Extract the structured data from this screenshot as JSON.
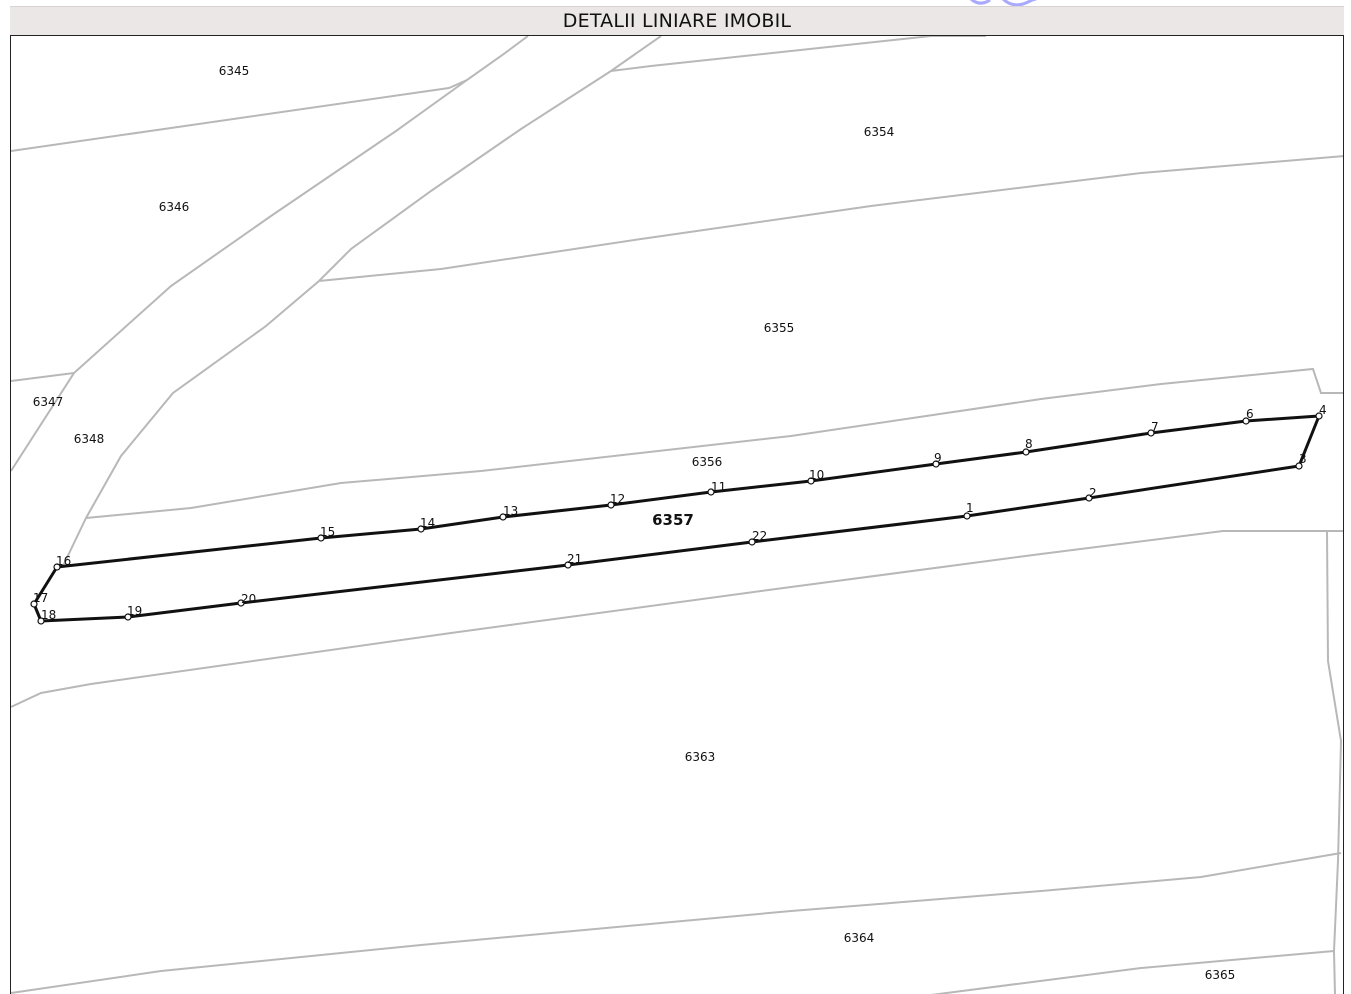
{
  "header": {
    "title": "DETALII LINIARE IMOBIL"
  },
  "colors": {
    "header_bg": "#ece7e7",
    "parcel_lines": "#b8b8b8",
    "boundary": "#111111",
    "watermark": "#a9a9ff"
  },
  "map": {
    "subject_parcel": "6357",
    "parcels": [
      "6345",
      "6346",
      "6347",
      "6348",
      "6354",
      "6355",
      "6356",
      "6363",
      "6364",
      "6365"
    ],
    "boundary_vertices": [
      "1",
      "2",
      "3",
      "4",
      "6",
      "7",
      "8",
      "9",
      "10",
      "11",
      "12",
      "13",
      "14",
      "15",
      "16",
      "17",
      "18",
      "19",
      "20",
      "21",
      "22"
    ]
  }
}
